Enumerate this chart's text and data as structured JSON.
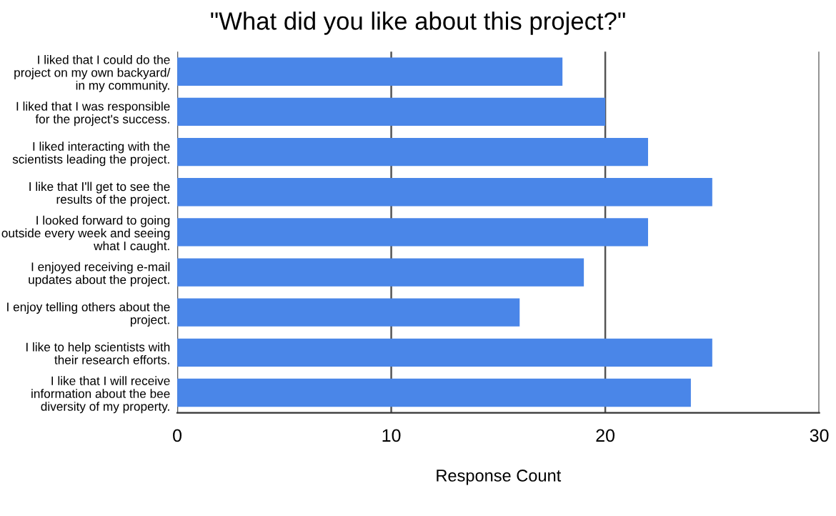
{
  "chart_data": {
    "type": "bar",
    "orientation": "horizontal",
    "title": "\"What did you like about this project?\"",
    "xlabel": "Response Count",
    "categories": [
      "I liked that I could do the\nproject on my own backyard/\nin my community.",
      "I liked that I was responsible\nfor the project's success.",
      "I liked interacting with the\nscientists leading the project.",
      "I like that I'll get to see the\nresults of the project.",
      "I looked forward to going\noutside every week and seeing\nwhat I caught.",
      "I enjoyed receiving e-mail\nupdates about the project.",
      "I enjoy telling others about the\nproject.",
      "I like to help scientists with\ntheir research efforts.",
      "I like that I will receive\ninformation about the bee\ndiversity of my property."
    ],
    "values": [
      18,
      20,
      22,
      25,
      22,
      19,
      16,
      25,
      24
    ],
    "color": "#4a86e8",
    "xlim": [
      0,
      30
    ],
    "xticks": [
      0,
      10,
      20,
      30
    ],
    "grid": "x"
  }
}
